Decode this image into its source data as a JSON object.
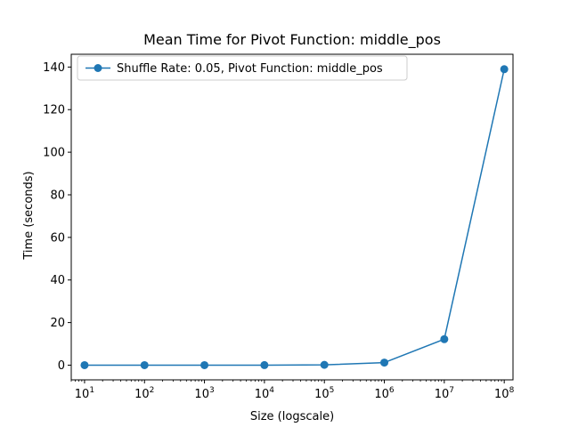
{
  "chart_data": {
    "type": "line",
    "title": "Mean Time for Pivot Function: middle_pos",
    "xlabel": "Size (logscale)",
    "ylabel": "Time (seconds)",
    "xscale": "log",
    "xlim": [
      6.0,
      140000000
    ],
    "ylim": [
      -6.9,
      146
    ],
    "x_ticks": [
      {
        "value": 10,
        "base": "10",
        "exp": "1"
      },
      {
        "value": 100,
        "base": "10",
        "exp": "2"
      },
      {
        "value": 1000,
        "base": "10",
        "exp": "3"
      },
      {
        "value": 10000,
        "base": "10",
        "exp": "4"
      },
      {
        "value": 100000,
        "base": "10",
        "exp": "5"
      },
      {
        "value": 1000000,
        "base": "10",
        "exp": "6"
      },
      {
        "value": 10000000,
        "base": "10",
        "exp": "7"
      },
      {
        "value": 100000000,
        "base": "10",
        "exp": "8"
      }
    ],
    "y_ticks": [
      0,
      20,
      40,
      60,
      80,
      100,
      120,
      140
    ],
    "grid": false,
    "legend_position": "upper-left",
    "series": [
      {
        "name": "Shuffle Rate: 0.05, Pivot Function: middle_pos",
        "color": "#1f77b4",
        "marker": "circle",
        "x": [
          10,
          100,
          1000,
          10000,
          100000,
          1000000,
          10000000,
          100000000
        ],
        "values": [
          0.0,
          0.0,
          0.0,
          0.02,
          0.15,
          1.2,
          12.2,
          139.0
        ]
      }
    ]
  }
}
